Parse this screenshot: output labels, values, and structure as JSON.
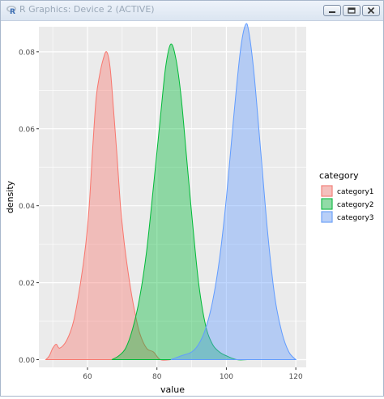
{
  "window": {
    "title": "R Graphics: Device 2 (ACTIVE)",
    "app_icon": "r-logo-icon",
    "buttons": [
      "minimize-icon",
      "maximize-icon",
      "close-icon"
    ]
  },
  "colors": {
    "panel_bg": "#ebebeb",
    "grid": "#ffffff",
    "category1": "#f8766d",
    "category2": "#00ba38",
    "category3": "#619cff"
  },
  "chart_data": {
    "type": "area",
    "title": "",
    "xlabel": "value",
    "ylabel": "density",
    "xlim": [
      46,
      123
    ],
    "ylim": [
      -0.002,
      0.0865
    ],
    "x_ticks": [
      60,
      80,
      100,
      120
    ],
    "x_tick_labels": [
      "60",
      "80",
      "100",
      "120"
    ],
    "y_ticks": [
      0,
      0.02,
      0.04,
      0.06,
      0.08
    ],
    "y_tick_labels": [
      "0.00",
      "0.02",
      "0.04",
      "0.06",
      "0.08"
    ],
    "grid": true,
    "fill_alpha": 0.4,
    "legend": {
      "title": "category",
      "position": "right",
      "entries": [
        "category1",
        "category2",
        "category3"
      ]
    },
    "series": [
      {
        "name": "category1",
        "color": "#f8766d",
        "points": [
          [
            48,
            0.0
          ],
          [
            49,
            0.001
          ],
          [
            50,
            0.003
          ],
          [
            51,
            0.004
          ],
          [
            52,
            0.003
          ],
          [
            54,
            0.005
          ],
          [
            56,
            0.01
          ],
          [
            58,
            0.02
          ],
          [
            59.5,
            0.03
          ],
          [
            60.5,
            0.04
          ],
          [
            61.5,
            0.055
          ],
          [
            62.5,
            0.068
          ],
          [
            63.5,
            0.074
          ],
          [
            64.5,
            0.078
          ],
          [
            65.5,
            0.08
          ],
          [
            66.5,
            0.076
          ],
          [
            67.5,
            0.065
          ],
          [
            68.5,
            0.053
          ],
          [
            69.5,
            0.04
          ],
          [
            70.5,
            0.031
          ],
          [
            71.5,
            0.024
          ],
          [
            72.5,
            0.018
          ],
          [
            73.5,
            0.013
          ],
          [
            75,
            0.007
          ],
          [
            77,
            0.003
          ],
          [
            79,
            0.002
          ],
          [
            81,
            0.0
          ],
          [
            84,
            0.0
          ]
        ]
      },
      {
        "name": "category2",
        "color": "#00ba38",
        "points": [
          [
            67,
            0.0
          ],
          [
            69,
            0.001
          ],
          [
            71,
            0.003
          ],
          [
            73,
            0.008
          ],
          [
            75,
            0.016
          ],
          [
            77,
            0.028
          ],
          [
            79,
            0.045
          ],
          [
            81,
            0.063
          ],
          [
            82.5,
            0.076
          ],
          [
            84,
            0.082
          ],
          [
            85.5,
            0.078
          ],
          [
            87,
            0.068
          ],
          [
            88.5,
            0.053
          ],
          [
            90,
            0.038
          ],
          [
            92,
            0.02
          ],
          [
            94,
            0.009
          ],
          [
            96,
            0.004
          ],
          [
            98,
            0.002
          ],
          [
            100,
            0.001
          ],
          [
            103,
            0.0
          ],
          [
            106,
            0.0
          ]
        ]
      },
      {
        "name": "category3",
        "color": "#619cff",
        "points": [
          [
            84,
            0.0
          ],
          [
            87,
            0.001
          ],
          [
            90,
            0.002
          ],
          [
            92,
            0.004
          ],
          [
            94,
            0.008
          ],
          [
            96,
            0.015
          ],
          [
            98,
            0.026
          ],
          [
            100,
            0.042
          ],
          [
            102,
            0.062
          ],
          [
            104,
            0.08
          ],
          [
            105.5,
            0.087
          ],
          [
            106.5,
            0.085
          ],
          [
            108,
            0.074
          ],
          [
            110,
            0.053
          ],
          [
            112,
            0.032
          ],
          [
            114,
            0.016
          ],
          [
            116,
            0.007
          ],
          [
            118,
            0.002
          ],
          [
            120,
            0.0
          ]
        ]
      }
    ]
  }
}
